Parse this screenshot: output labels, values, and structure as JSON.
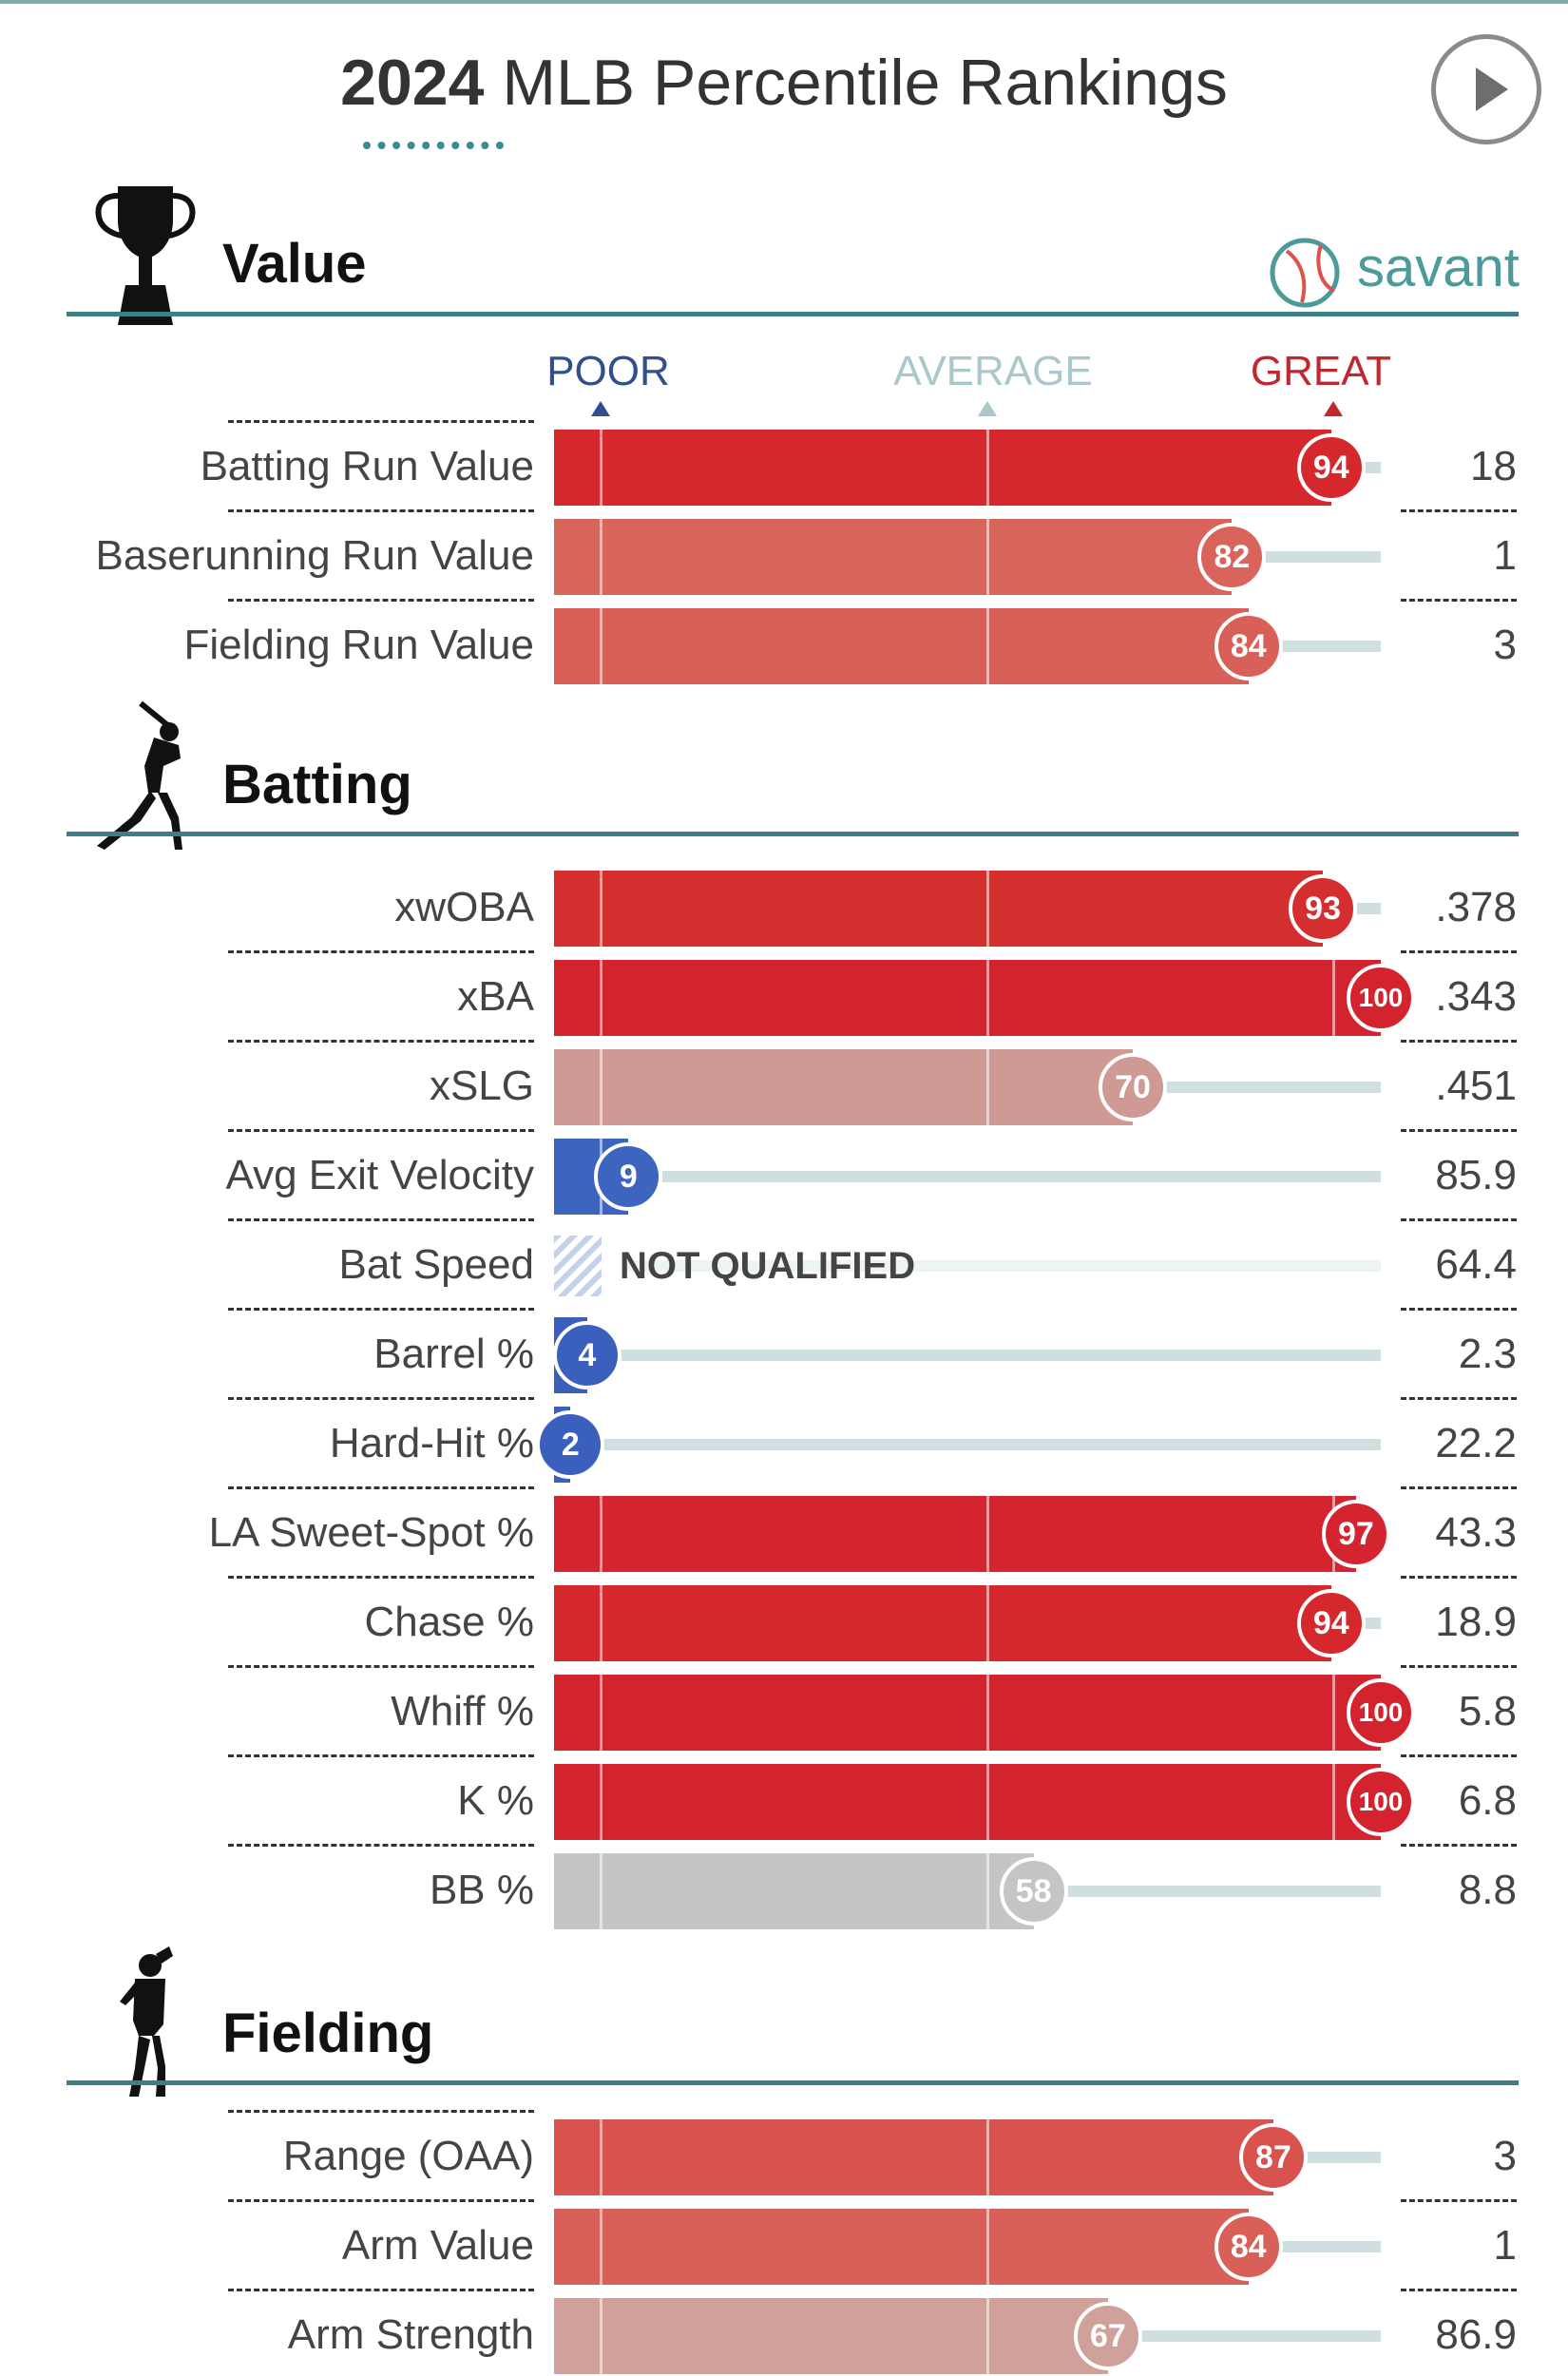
{
  "header": {
    "year": "2024",
    "title_rest": " MLB Percentile Rankings",
    "play_icon": "play-circle-icon"
  },
  "brand": {
    "text": "savant",
    "icon": "baseball-logo-icon",
    "color": "#4c9a9c"
  },
  "scale": {
    "poor": "POOR",
    "average": "AVERAGE",
    "great": "GREAT"
  },
  "colors": {
    "accent_rule": "#3e7f86",
    "great_red": "#d22d49",
    "poor_blue": "#3461c1",
    "average_gray": "#c3c6c8",
    "track": "#cfdfe0"
  },
  "sections": [
    {
      "title": "Value",
      "icon": "trophy-icon",
      "rows": [
        {
          "label": "Batting Run Value",
          "percentile": 94,
          "value": "18",
          "color": "#d4282c"
        },
        {
          "label": "Baserunning Run Value",
          "percentile": 82,
          "value": "1",
          "color": "#d9645c"
        },
        {
          "label": "Fielding Run Value",
          "percentile": 84,
          "value": "3",
          "color": "#d86058"
        }
      ]
    },
    {
      "title": "Batting",
      "icon": "batter-silhouette-icon",
      "rows": [
        {
          "label": "xwOBA",
          "percentile": 93,
          "value": ".378",
          "color": "#d52e2e"
        },
        {
          "label": "xBA",
          "percentile": 100,
          "value": ".343",
          "color": "#d2232e"
        },
        {
          "label": "xSLG",
          "percentile": 70,
          "value": ".451",
          "color": "#d09a94"
        },
        {
          "label": "Avg Exit Velocity",
          "percentile": 9,
          "value": "85.9",
          "color": "#3d64be"
        },
        {
          "label": "Bat Speed",
          "percentile": null,
          "value": "64.4",
          "status": "NOT QUALIFIED"
        },
        {
          "label": "Barrel %",
          "percentile": 4,
          "value": "2.3",
          "color": "#3a5fbd"
        },
        {
          "label": "Hard-Hit %",
          "percentile": 2,
          "value": "22.2",
          "color": "#3a5fbd"
        },
        {
          "label": "LA Sweet-Spot %",
          "percentile": 97,
          "value": "43.3",
          "color": "#d32430"
        },
        {
          "label": "Chase %",
          "percentile": 94,
          "value": "18.9",
          "color": "#d4282c"
        },
        {
          "label": "Whiff %",
          "percentile": 100,
          "value": "5.8",
          "color": "#d2232e"
        },
        {
          "label": "K %",
          "percentile": 100,
          "value": "6.8",
          "color": "#d2232e"
        },
        {
          "label": "BB %",
          "percentile": 58,
          "value": "8.8",
          "color": "#c4c6c6"
        }
      ]
    },
    {
      "title": "Fielding",
      "icon": "fielder-silhouette-icon",
      "rows": [
        {
          "label": "Range (OAA)",
          "percentile": 87,
          "value": "3",
          "color": "#d8534e"
        },
        {
          "label": "Arm Value",
          "percentile": 84,
          "value": "1",
          "color": "#d86058"
        },
        {
          "label": "Arm Strength",
          "percentile": 67,
          "value": "86.9",
          "color": "#d0a19a"
        }
      ]
    }
  ]
}
